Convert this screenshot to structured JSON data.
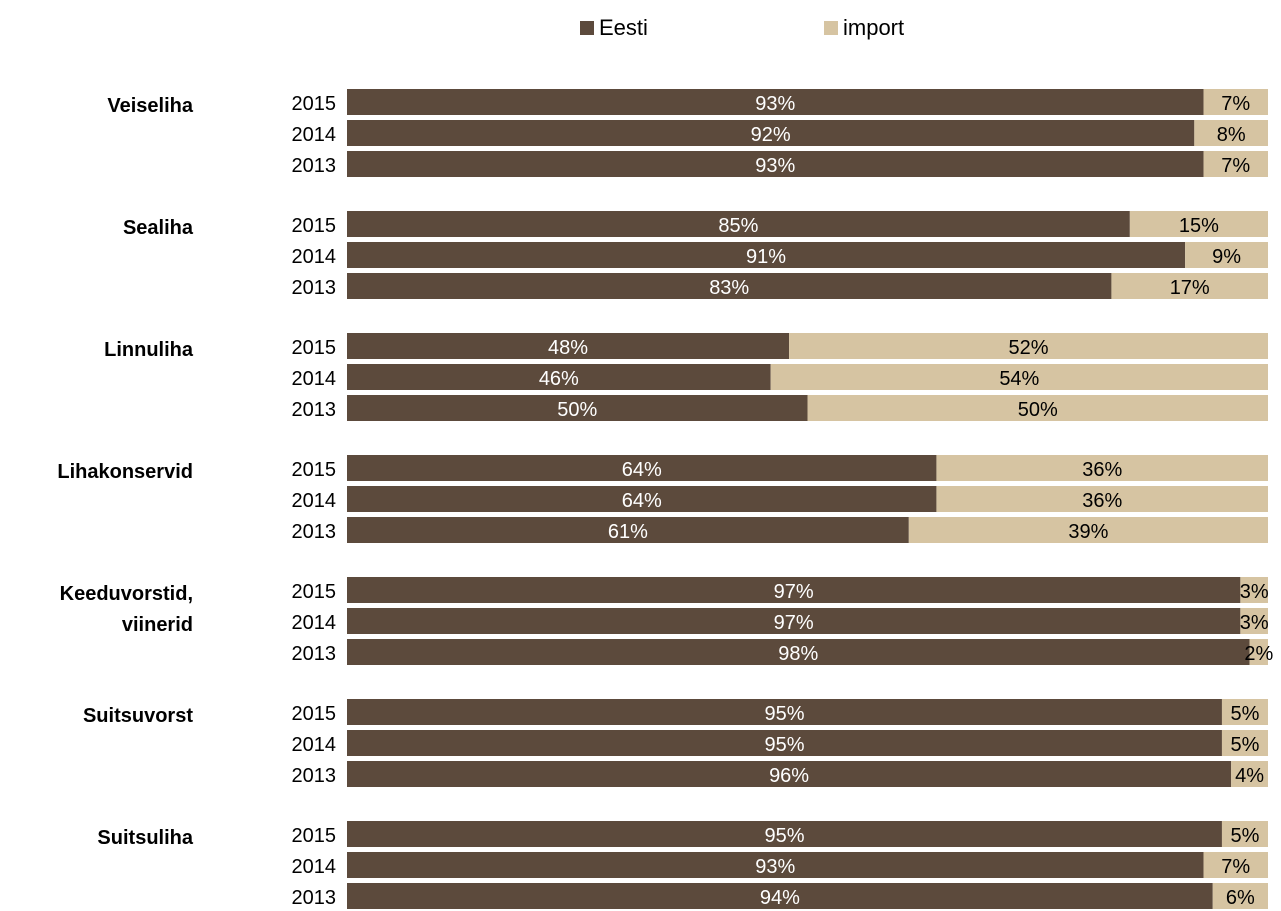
{
  "chart_data": {
    "type": "bar",
    "orientation": "horizontal",
    "stacked": "percent",
    "legend": [
      {
        "name": "Eesti",
        "color": "#5c4a3c"
      },
      {
        "name": "import",
        "color": "#d6c4a2"
      }
    ],
    "legend_position": "top",
    "xlim": [
      0,
      100
    ],
    "grid": false,
    "groups": [
      {
        "label": [
          "Veiseliha"
        ],
        "rows": [
          {
            "year": "2015",
            "eesti": 93,
            "import": 7
          },
          {
            "year": "2014",
            "eesti": 92,
            "import": 8
          },
          {
            "year": "2013",
            "eesti": 93,
            "import": 7
          }
        ]
      },
      {
        "label": [
          "Sealiha"
        ],
        "rows": [
          {
            "year": "2015",
            "eesti": 85,
            "import": 15
          },
          {
            "year": "2014",
            "eesti": 91,
            "import": 9
          },
          {
            "year": "2013",
            "eesti": 83,
            "import": 17
          }
        ]
      },
      {
        "label": [
          "Linnuliha"
        ],
        "rows": [
          {
            "year": "2015",
            "eesti": 48,
            "import": 52
          },
          {
            "year": "2014",
            "eesti": 46,
            "import": 54
          },
          {
            "year": "2013",
            "eesti": 50,
            "import": 50
          }
        ]
      },
      {
        "label": [
          "Lihakonservid"
        ],
        "rows": [
          {
            "year": "2015",
            "eesti": 64,
            "import": 36
          },
          {
            "year": "2014",
            "eesti": 64,
            "import": 36
          },
          {
            "year": "2013",
            "eesti": 61,
            "import": 39
          }
        ]
      },
      {
        "label": [
          "Keeduvorstid,",
          "viinerid"
        ],
        "rows": [
          {
            "year": "2015",
            "eesti": 97,
            "import": 3
          },
          {
            "year": "2014",
            "eesti": 97,
            "import": 3
          },
          {
            "year": "2013",
            "eesti": 98,
            "import": 2
          }
        ]
      },
      {
        "label": [
          "Suitsuvorst"
        ],
        "rows": [
          {
            "year": "2015",
            "eesti": 95,
            "import": 5
          },
          {
            "year": "2014",
            "eesti": 95,
            "import": 5
          },
          {
            "year": "2013",
            "eesti": 96,
            "import": 4
          }
        ]
      },
      {
        "label": [
          "Suitsuliha"
        ],
        "rows": [
          {
            "year": "2015",
            "eesti": 95,
            "import": 5
          },
          {
            "year": "2014",
            "eesti": 93,
            "import": 7
          },
          {
            "year": "2013",
            "eesti": 94,
            "import": 6
          }
        ]
      }
    ]
  }
}
